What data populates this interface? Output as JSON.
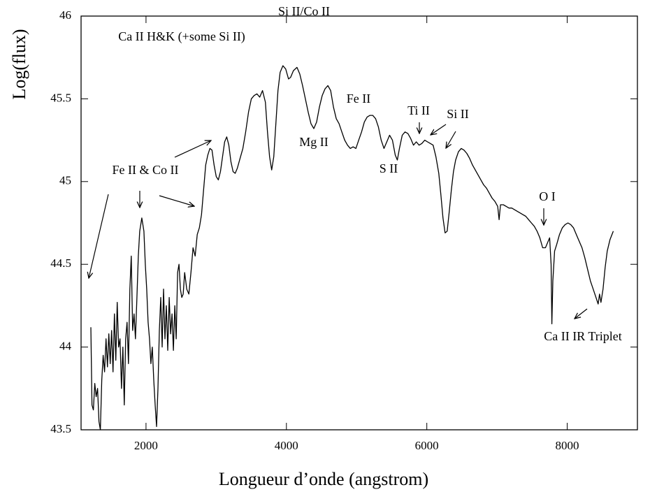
{
  "chart_data": {
    "type": "line",
    "xlabel": "Longueur d’onde (angstrom)",
    "ylabel": "Log(flux)",
    "color": "#000000",
    "xlim": [
      1075,
      9000
    ],
    "ylim": [
      43.5,
      46
    ],
    "xticks": [
      2000,
      4000,
      6000,
      8000
    ],
    "yticks": [
      43.5,
      44,
      44.5,
      45,
      45.5,
      46
    ],
    "annotations": [
      "Si II/Co II",
      "Ca II H&K (+some Si II)",
      "Fe II",
      "Mg II",
      "S II",
      "Ti II",
      "Si II",
      "Fe II & Co II",
      "O I",
      "Ca II IR Triplet"
    ],
    "x": [
      1214,
      1230,
      1250,
      1270,
      1290,
      1310,
      1330,
      1350,
      1370,
      1390,
      1410,
      1430,
      1450,
      1470,
      1490,
      1510,
      1530,
      1550,
      1570,
      1590,
      1610,
      1630,
      1650,
      1670,
      1690,
      1710,
      1730,
      1750,
      1770,
      1790,
      1810,
      1830,
      1850,
      1870,
      1890,
      1910,
      1940,
      1970,
      1990,
      2010,
      2030,
      2050,
      2070,
      2090,
      2110,
      2130,
      2150,
      2170,
      2190,
      2210,
      2230,
      2250,
      2270,
      2290,
      2310,
      2330,
      2350,
      2370,
      2390,
      2410,
      2430,
      2450,
      2470,
      2490,
      2510,
      2530,
      2550,
      2580,
      2610,
      2640,
      2670,
      2700,
      2730,
      2760,
      2790,
      2820,
      2850,
      2880,
      2910,
      2940,
      2970,
      3000,
      3030,
      3060,
      3090,
      3120,
      3150,
      3180,
      3210,
      3240,
      3270,
      3300,
      3340,
      3380,
      3420,
      3460,
      3500,
      3540,
      3580,
      3620,
      3660,
      3700,
      3730,
      3760,
      3790,
      3820,
      3850,
      3880,
      3910,
      3950,
      3990,
      4030,
      4060,
      4100,
      4150,
      4190,
      4230,
      4270,
      4310,
      4350,
      4390,
      4430,
      4470,
      4510,
      4550,
      4590,
      4630,
      4670,
      4710,
      4750,
      4790,
      4830,
      4870,
      4910,
      4950,
      4990,
      5030,
      5070,
      5110,
      5150,
      5190,
      5230,
      5270,
      5310,
      5350,
      5390,
      5430,
      5470,
      5510,
      5550,
      5580,
      5610,
      5650,
      5690,
      5730,
      5770,
      5810,
      5850,
      5890,
      5930,
      5970,
      6010,
      6050,
      6090,
      6130,
      6170,
      6200,
      6230,
      6260,
      6290,
      6320,
      6350,
      6380,
      6410,
      6450,
      6490,
      6530,
      6570,
      6610,
      6650,
      6690,
      6730,
      6770,
      6810,
      6850,
      6890,
      6930,
      6970,
      7010,
      7030,
      7050,
      7090,
      7130,
      7170,
      7210,
      7250,
      7290,
      7330,
      7370,
      7410,
      7450,
      7490,
      7530,
      7570,
      7610,
      7650,
      7690,
      7720,
      7750,
      7770,
      7781,
      7795,
      7820,
      7850,
      7890,
      7930,
      7970,
      8010,
      8050,
      8090,
      8130,
      8170,
      8210,
      8250,
      8290,
      8330,
      8370,
      8410,
      8440,
      8460,
      8480,
      8510,
      8540,
      8570,
      8610,
      8657
    ],
    "values": [
      44.12,
      43.65,
      43.62,
      43.78,
      43.7,
      43.75,
      43.55,
      43.5,
      43.8,
      43.95,
      43.85,
      44.05,
      43.88,
      44.08,
      43.9,
      44.1,
      43.85,
      44.2,
      43.92,
      44.27,
      44.0,
      44.05,
      43.75,
      44.0,
      43.65,
      44.05,
      44.15,
      43.9,
      44.35,
      44.55,
      44.1,
      44.2,
      44.05,
      44.3,
      44.55,
      44.7,
      44.78,
      44.7,
      44.5,
      44.35,
      44.15,
      44.05,
      43.9,
      44.0,
      43.8,
      43.65,
      43.52,
      43.75,
      44.1,
      44.3,
      44.0,
      44.35,
      44.05,
      44.25,
      43.98,
      44.3,
      44.08,
      44.2,
      43.98,
      44.25,
      44.05,
      44.45,
      44.5,
      44.35,
      44.3,
      44.32,
      44.45,
      44.35,
      44.32,
      44.45,
      44.6,
      44.55,
      44.68,
      44.72,
      44.8,
      44.95,
      45.1,
      45.16,
      45.2,
      45.19,
      45.1,
      45.03,
      45.01,
      45.06,
      45.15,
      45.24,
      45.27,
      45.22,
      45.12,
      45.06,
      45.05,
      45.08,
      45.14,
      45.2,
      45.3,
      45.42,
      45.5,
      45.52,
      45.53,
      45.51,
      45.55,
      45.48,
      45.3,
      45.15,
      45.07,
      45.15,
      45.35,
      45.55,
      45.66,
      45.7,
      45.68,
      45.62,
      45.63,
      45.67,
      45.69,
      45.65,
      45.58,
      45.5,
      45.42,
      45.35,
      45.32,
      45.36,
      45.45,
      45.52,
      45.56,
      45.58,
      45.55,
      45.45,
      45.38,
      45.35,
      45.3,
      45.25,
      45.22,
      45.2,
      45.21,
      45.2,
      45.25,
      45.3,
      45.36,
      45.39,
      45.4,
      45.4,
      45.38,
      45.33,
      45.25,
      45.2,
      45.24,
      45.28,
      45.25,
      45.16,
      45.13,
      45.2,
      45.28,
      45.3,
      45.29,
      45.26,
      45.22,
      45.24,
      45.22,
      45.23,
      45.25,
      45.24,
      45.23,
      45.22,
      45.15,
      45.05,
      44.92,
      44.78,
      44.69,
      44.7,
      44.82,
      44.95,
      45.06,
      45.13,
      45.18,
      45.2,
      45.19,
      45.17,
      45.14,
      45.1,
      45.07,
      45.04,
      45.01,
      44.98,
      44.96,
      44.93,
      44.9,
      44.88,
      44.85,
      44.77,
      44.86,
      44.86,
      44.85,
      44.84,
      44.84,
      44.83,
      44.82,
      44.81,
      44.8,
      44.79,
      44.77,
      44.75,
      44.73,
      44.7,
      44.66,
      44.6,
      44.6,
      44.63,
      44.66,
      44.5,
      44.14,
      44.4,
      44.58,
      44.62,
      44.68,
      44.72,
      44.74,
      44.75,
      44.74,
      44.72,
      44.68,
      44.64,
      44.6,
      44.54,
      44.47,
      44.4,
      44.35,
      44.3,
      44.26,
      44.32,
      44.27,
      44.35,
      44.48,
      44.58,
      44.65,
      44.7
    ]
  }
}
